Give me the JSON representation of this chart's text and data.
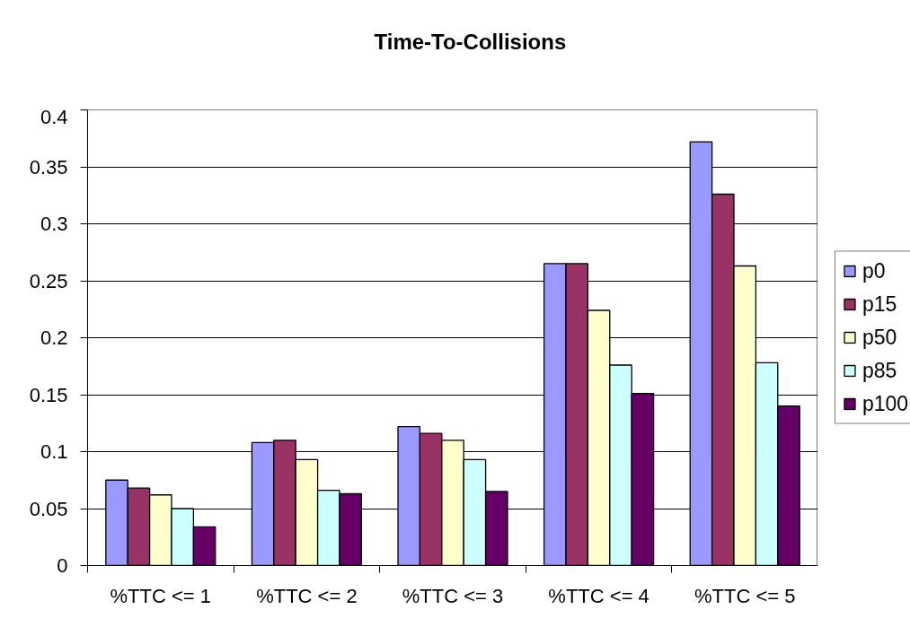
{
  "chart_data": {
    "type": "bar",
    "title": "Time-To-Collisions",
    "categories": [
      "%TTC <= 1",
      "%TTC <= 2",
      "%TTC <= 3",
      "%TTC <= 4",
      "%TTC <= 5"
    ],
    "series": [
      {
        "name": "p0",
        "color": "#9999ff",
        "values": [
          0.075,
          0.108,
          0.122,
          0.265,
          0.372
        ]
      },
      {
        "name": "p15",
        "color": "#993366",
        "values": [
          0.068,
          0.11,
          0.116,
          0.265,
          0.326
        ]
      },
      {
        "name": "p50",
        "color": "#ffffcc",
        "values": [
          0.062,
          0.093,
          0.11,
          0.224,
          0.263
        ]
      },
      {
        "name": "p85",
        "color": "#ccffff",
        "values": [
          0.05,
          0.066,
          0.093,
          0.176,
          0.178
        ]
      },
      {
        "name": "p100",
        "color": "#660066",
        "values": [
          0.034,
          0.063,
          0.065,
          0.151,
          0.14
        ]
      }
    ],
    "ylim": [
      0,
      0.4
    ],
    "yticks": [
      0,
      0.05,
      0.1,
      0.15,
      0.2,
      0.25,
      0.3,
      0.35,
      0.4
    ],
    "grid": "y",
    "legend": "right"
  }
}
